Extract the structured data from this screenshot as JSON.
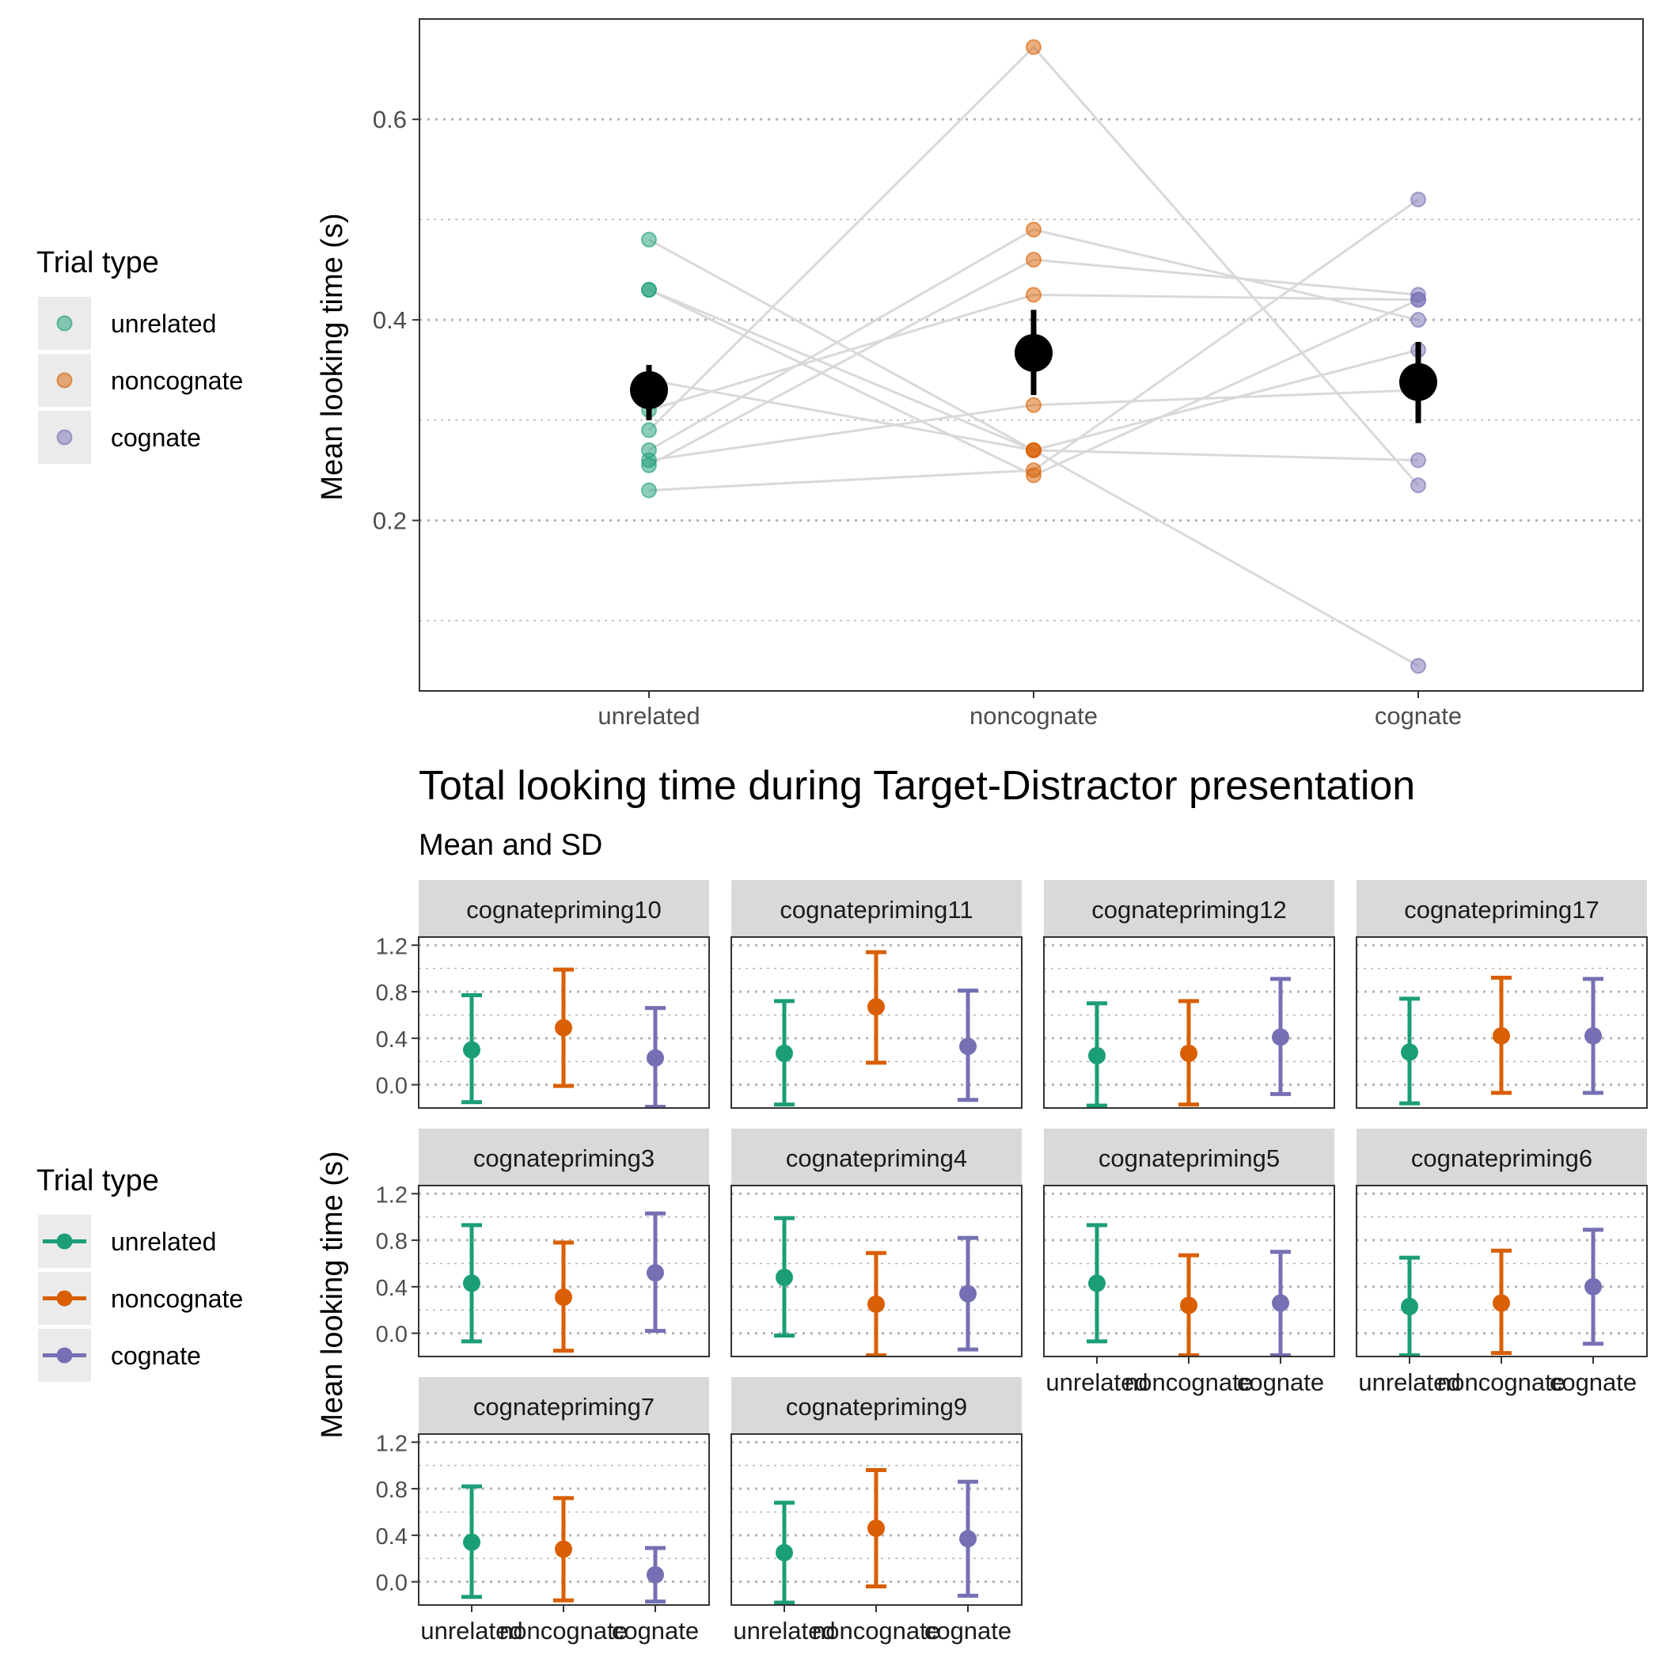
{
  "colors": {
    "unrelated": "#1b9e77",
    "noncognate": "#d95f02",
    "cognate": "#7570b3",
    "summary": "#000000",
    "connector": "#d9d9d9",
    "strip": "#d9d9d9",
    "legend_key_bg": "#ebebeb",
    "grid": "#b3b3b3",
    "axis_text": "#4d4d4d"
  },
  "legends": [
    {
      "title": "Trial type",
      "key_style": "point",
      "items": [
        {
          "label": "unrelated",
          "color": "#1b9e77"
        },
        {
          "label": "noncognate",
          "color": "#d95f02"
        },
        {
          "label": "cognate",
          "color": "#7570b3"
        }
      ]
    },
    {
      "title": "Trial type",
      "key_style": "line-point",
      "items": [
        {
          "label": "unrelated",
          "color": "#1b9e77"
        },
        {
          "label": "noncognate",
          "color": "#d95f02"
        },
        {
          "label": "cognate",
          "color": "#7570b3"
        }
      ]
    }
  ],
  "chart_data": [
    {
      "type": "scatter",
      "title": "",
      "xlabel": "",
      "ylabel": "Mean looking time (s)",
      "categories": [
        "unrelated",
        "noncognate",
        "cognate"
      ],
      "ylim": [
        0.03,
        0.7
      ],
      "yticks": [
        0.2,
        0.4,
        0.6
      ],
      "ytick_labels": [
        "0.2",
        "0.4",
        "0.6"
      ],
      "grid": "horizontal dotted",
      "legend": "left",
      "participants": [
        {
          "values": [
            0.43,
            0.245,
            0.42
          ]
        },
        {
          "values": [
            0.43,
            0.27,
            0.055
          ]
        },
        {
          "values": [
            0.48,
            0.27,
            0.37
          ]
        },
        {
          "values": [
            0.34,
            0.27,
            0.26
          ]
        },
        {
          "values": [
            0.31,
            0.425,
            0.42
          ]
        },
        {
          "values": [
            0.29,
            0.672,
            0.235
          ]
        },
        {
          "values": [
            0.255,
            0.46,
            0.425
          ]
        },
        {
          "values": [
            0.27,
            0.49,
            0.4
          ]
        },
        {
          "values": [
            0.23,
            0.25,
            0.52
          ]
        },
        {
          "values": [
            0.26,
            0.315,
            0.33
          ]
        }
      ],
      "summary": [
        {
          "category": "unrelated",
          "mean": 0.33,
          "low": 0.3,
          "high": 0.355
        },
        {
          "category": "noncognate",
          "mean": 0.367,
          "low": 0.325,
          "high": 0.41
        },
        {
          "category": "cognate",
          "mean": 0.338,
          "low": 0.297,
          "high": 0.378
        }
      ]
    },
    {
      "type": "scatter",
      "title": "Total looking time during Target-Distractor presentation",
      "subtitle": "Mean and SD",
      "xlabel": "",
      "ylabel": "Mean looking time (s)",
      "categories": [
        "unrelated",
        "noncognate",
        "cognate"
      ],
      "ylim": [
        -0.2,
        1.27
      ],
      "yticks": [
        0.0,
        0.4,
        0.8,
        1.2
      ],
      "ytick_labels": [
        "0.0",
        "0.4",
        "0.8",
        "1.2"
      ],
      "grid": "horizontal dotted",
      "legend": "left",
      "facets": [
        {
          "name": "cognatepriming10",
          "mean": [
            0.3,
            0.49,
            0.23
          ],
          "low": [
            -0.15,
            -0.01,
            -0.19
          ],
          "high": [
            0.77,
            0.99,
            0.66
          ]
        },
        {
          "name": "cognatepriming11",
          "mean": [
            0.27,
            0.67,
            0.33
          ],
          "low": [
            -0.17,
            0.19,
            -0.13
          ],
          "high": [
            0.72,
            1.14,
            0.81
          ]
        },
        {
          "name": "cognatepriming12",
          "mean": [
            0.25,
            0.27,
            0.41
          ],
          "low": [
            -0.18,
            -0.17,
            -0.08
          ],
          "high": [
            0.7,
            0.72,
            0.91
          ]
        },
        {
          "name": "cognatepriming17",
          "mean": [
            0.28,
            0.42,
            0.42
          ],
          "low": [
            -0.16,
            -0.07,
            -0.07
          ],
          "high": [
            0.74,
            0.92,
            0.91
          ]
        },
        {
          "name": "cognatepriming3",
          "mean": [
            0.43,
            0.31,
            0.52
          ],
          "low": [
            -0.07,
            -0.15,
            0.02
          ],
          "high": [
            0.93,
            0.78,
            1.03
          ]
        },
        {
          "name": "cognatepriming4",
          "mean": [
            0.48,
            0.25,
            0.34
          ],
          "low": [
            -0.02,
            -0.19,
            -0.14
          ],
          "high": [
            0.99,
            0.69,
            0.82
          ]
        },
        {
          "name": "cognatepriming5",
          "mean": [
            0.43,
            0.24,
            0.26
          ],
          "low": [
            -0.07,
            -0.19,
            -0.19
          ],
          "high": [
            0.93,
            0.67,
            0.7
          ]
        },
        {
          "name": "cognatepriming6",
          "mean": [
            0.23,
            0.26,
            0.4
          ],
          "low": [
            -0.19,
            -0.17,
            -0.09
          ],
          "high": [
            0.65,
            0.71,
            0.89
          ]
        },
        {
          "name": "cognatepriming7",
          "mean": [
            0.34,
            0.28,
            0.06
          ],
          "low": [
            -0.13,
            -0.16,
            -0.17
          ],
          "high": [
            0.82,
            0.72,
            0.29
          ]
        },
        {
          "name": "cognatepriming9",
          "mean": [
            0.25,
            0.46,
            0.37
          ],
          "low": [
            -0.18,
            -0.04,
            -0.12
          ],
          "high": [
            0.68,
            0.96,
            0.86
          ]
        }
      ]
    }
  ]
}
